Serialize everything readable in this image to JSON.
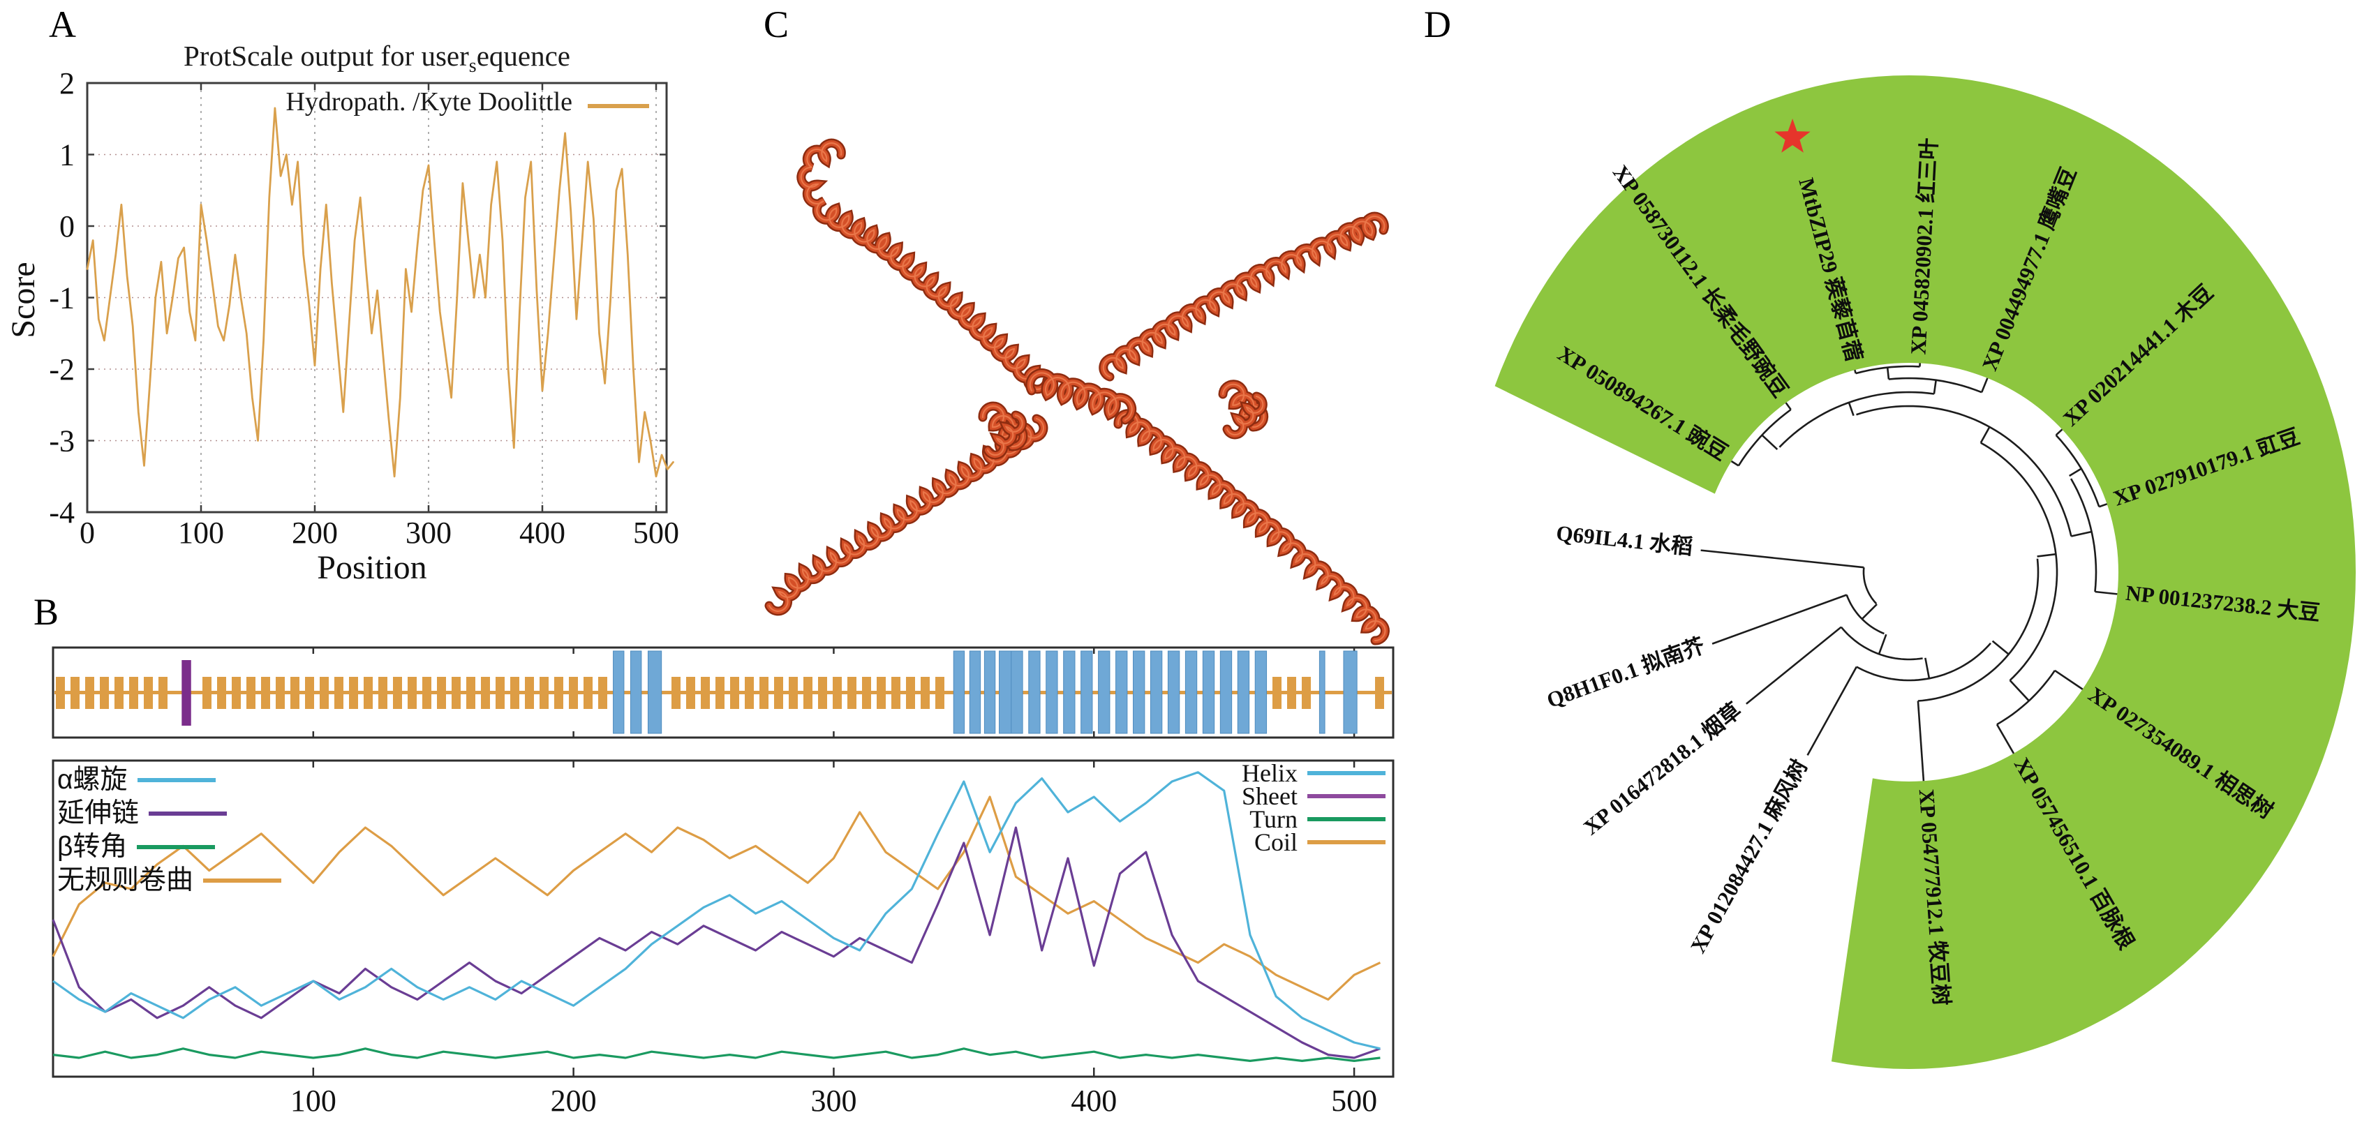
{
  "figure": {
    "background": "#ffffff"
  },
  "panels": {
    "a": {
      "letter": "A",
      "title_pre": "ProtScale output for user",
      "title_sub": "s",
      "title_post": "equence",
      "legend": "Hydropath. /Kyte Doolittle",
      "xlabel": "Position",
      "ylabel": "Score"
    },
    "b": {
      "letter": "B",
      "legend_left": [
        {
          "label": "α螺旋",
          "color": "#4fb3d9"
        },
        {
          "label": "延伸链",
          "color": "#6a3d94"
        },
        {
          "label": "β转角",
          "color": "#1a9a60"
        },
        {
          "label": "无规则卷曲",
          "color": "#dd9d45"
        }
      ],
      "legend_right": [
        {
          "label": "Helix",
          "color": "#4fb3d9"
        },
        {
          "label": "Sheet",
          "color": "#8e4a9e"
        },
        {
          "label": "Turn",
          "color": "#1a9a60"
        },
        {
          "label": "Coil",
          "color": "#dd9d45"
        }
      ]
    },
    "c": {
      "letter": "C",
      "ribbon_main": "#d44f27",
      "ribbon_dark": "#8e2c10",
      "ribbon_light": "#ef8052"
    },
    "d": {
      "letter": "D",
      "highlight_color": "#8dc63f",
      "star_color": "#e6352b",
      "star_taxon": "MtbZIP29 蒺藜苜蓿"
    }
  },
  "chart_data": [
    {
      "id": "protscale",
      "type": "line",
      "title": "ProtScale output for user_sequence",
      "xlabel": "Position",
      "ylabel": "Score",
      "xlim": [
        0,
        515
      ],
      "ylim": [
        -4,
        2
      ],
      "x_ticks": [
        0,
        100,
        200,
        300,
        400,
        500
      ],
      "y_ticks": [
        2,
        1,
        0,
        -1,
        -2,
        -3,
        -4
      ],
      "grid": true,
      "legend_position": "top-right",
      "series": [
        {
          "name": "Hydropath. /Kyte Doolittle",
          "color": "#d9a04c",
          "x_step": 5,
          "y": [
            -0.6,
            -0.2,
            -1.3,
            -1.6,
            -1.0,
            -0.4,
            0.3,
            -0.7,
            -1.4,
            -2.6,
            -3.35,
            -2.2,
            -1.0,
            -0.5,
            -1.5,
            -1.0,
            -0.45,
            -0.3,
            -1.2,
            -1.6,
            0.3,
            -0.2,
            -0.8,
            -1.4,
            -1.6,
            -1.1,
            -0.4,
            -1.0,
            -1.5,
            -2.4,
            -3.0,
            -1.6,
            0.4,
            1.65,
            0.7,
            1.0,
            0.3,
            0.9,
            -0.4,
            -1.1,
            -1.95,
            -0.6,
            0.3,
            -0.8,
            -1.7,
            -2.6,
            -1.4,
            -0.2,
            0.4,
            -0.6,
            -1.5,
            -0.9,
            -1.8,
            -2.7,
            -3.5,
            -2.4,
            -0.6,
            -1.2,
            -0.3,
            0.5,
            0.85,
            -0.2,
            -1.2,
            -1.8,
            -2.4,
            -1.0,
            0.6,
            -0.2,
            -1.0,
            -0.4,
            -1.0,
            0.3,
            0.9,
            -0.2,
            -2.0,
            -3.1,
            -1.2,
            0.4,
            0.9,
            -0.9,
            -2.3,
            -1.5,
            -0.5,
            0.5,
            1.3,
            0.2,
            -1.3,
            -0.2,
            0.9,
            0.1,
            -1.5,
            -2.2,
            -1.0,
            0.5,
            0.8,
            -0.4,
            -2.0,
            -3.3,
            -2.6,
            -3.0,
            -3.5,
            -3.2,
            -3.4,
            -3.3
          ]
        }
      ]
    },
    {
      "id": "domain-architecture",
      "type": "bar",
      "xlim": [
        0,
        515
      ],
      "sequence_track_color": "#dd9d45",
      "helix_segment_color": "#6fa8d6",
      "marker_color": "#7b2d8b",
      "marker": {
        "pos": 0.096,
        "width": 0.007
      },
      "helix_segments": [
        [
          0.418,
          0.008
        ],
        [
          0.431,
          0.008
        ],
        [
          0.444,
          0.01
        ],
        [
          0.672,
          0.008
        ],
        [
          0.684,
          0.008
        ],
        [
          0.695,
          0.008
        ],
        [
          0.706,
          0.01
        ],
        [
          0.715,
          0.0085
        ],
        [
          0.728,
          0.0085
        ],
        [
          0.741,
          0.0085
        ],
        [
          0.754,
          0.0085
        ],
        [
          0.767,
          0.0085
        ],
        [
          0.78,
          0.0085
        ],
        [
          0.793,
          0.0085
        ],
        [
          0.806,
          0.0085
        ],
        [
          0.819,
          0.0085
        ],
        [
          0.832,
          0.0085
        ],
        [
          0.845,
          0.0085
        ],
        [
          0.858,
          0.0085
        ],
        [
          0.871,
          0.0085
        ],
        [
          0.884,
          0.0085
        ],
        [
          0.897,
          0.0085
        ],
        [
          0.945,
          0.004
        ],
        [
          0.963,
          0.01
        ]
      ]
    },
    {
      "id": "secondary-structure",
      "type": "line",
      "xlim": [
        0,
        515
      ],
      "ylim": [
        0,
        1
      ],
      "x_ticks": [
        100,
        200,
        300,
        400,
        500
      ],
      "x_step": 10,
      "series": [
        {
          "name": "Helix",
          "color": "#4fb3d9",
          "y": [
            0.3,
            0.24,
            0.2,
            0.26,
            0.22,
            0.18,
            0.24,
            0.28,
            0.22,
            0.26,
            0.3,
            0.24,
            0.28,
            0.34,
            0.28,
            0.24,
            0.28,
            0.24,
            0.3,
            0.26,
            0.22,
            0.28,
            0.34,
            0.42,
            0.48,
            0.54,
            0.58,
            0.52,
            0.56,
            0.5,
            0.44,
            0.4,
            0.52,
            0.6,
            0.78,
            0.95,
            0.72,
            0.88,
            0.96,
            0.85,
            0.9,
            0.82,
            0.88,
            0.95,
            0.98,
            0.92,
            0.45,
            0.25,
            0.18,
            0.14,
            0.1,
            0.08
          ]
        },
        {
          "name": "Sheet",
          "color": "#6a3d94",
          "y": [
            0.5,
            0.28,
            0.2,
            0.24,
            0.18,
            0.22,
            0.28,
            0.22,
            0.18,
            0.24,
            0.3,
            0.26,
            0.34,
            0.28,
            0.24,
            0.3,
            0.36,
            0.3,
            0.26,
            0.32,
            0.38,
            0.44,
            0.4,
            0.46,
            0.42,
            0.48,
            0.44,
            0.4,
            0.46,
            0.42,
            0.38,
            0.44,
            0.4,
            0.36,
            0.55,
            0.75,
            0.45,
            0.8,
            0.4,
            0.7,
            0.35,
            0.65,
            0.72,
            0.45,
            0.3,
            0.25,
            0.2,
            0.15,
            0.1,
            0.06,
            0.05,
            0.08
          ]
        },
        {
          "name": "Turn",
          "color": "#1a9a60",
          "y": [
            0.06,
            0.05,
            0.07,
            0.05,
            0.06,
            0.08,
            0.06,
            0.05,
            0.07,
            0.06,
            0.05,
            0.06,
            0.08,
            0.06,
            0.05,
            0.07,
            0.06,
            0.05,
            0.06,
            0.07,
            0.05,
            0.06,
            0.05,
            0.07,
            0.06,
            0.05,
            0.06,
            0.05,
            0.07,
            0.06,
            0.05,
            0.06,
            0.07,
            0.05,
            0.06,
            0.08,
            0.06,
            0.07,
            0.05,
            0.06,
            0.07,
            0.05,
            0.06,
            0.05,
            0.06,
            0.05,
            0.04,
            0.05,
            0.04,
            0.05,
            0.04,
            0.05
          ]
        },
        {
          "name": "Coil",
          "color": "#dd9d45",
          "y": [
            0.38,
            0.55,
            0.62,
            0.6,
            0.68,
            0.74,
            0.66,
            0.72,
            0.78,
            0.7,
            0.62,
            0.72,
            0.8,
            0.74,
            0.66,
            0.58,
            0.64,
            0.7,
            0.64,
            0.58,
            0.66,
            0.72,
            0.78,
            0.72,
            0.8,
            0.76,
            0.7,
            0.74,
            0.68,
            0.62,
            0.7,
            0.85,
            0.72,
            0.66,
            0.6,
            0.72,
            0.9,
            0.64,
            0.58,
            0.52,
            0.56,
            0.5,
            0.44,
            0.4,
            0.36,
            0.42,
            0.38,
            0.32,
            0.28,
            0.24,
            0.32,
            0.36
          ]
        }
      ]
    },
    {
      "id": "phylogenetic-tree",
      "type": "tree",
      "leaves": [
        {
          "name": "Q69IL4.1 水稻",
          "angle": 174,
          "green": false,
          "star": false
        },
        {
          "name": "Q8H1F0.1 拟南芥",
          "angle": -160,
          "green": false,
          "star": false
        },
        {
          "name": "XP 016472818.1 烟草",
          "angle": -141,
          "green": false,
          "star": false
        },
        {
          "name": "XP 012084427.1 麻风树",
          "angle": -119,
          "green": false,
          "star": false
        },
        {
          "name": "XP 054777912.1 牧豆树",
          "angle": -86,
          "green": true,
          "star": false
        },
        {
          "name": "XP 027354089.1 相思树",
          "angle": -34,
          "green": true,
          "star": false
        },
        {
          "name": "XP 057456510.1 百脉根",
          "angle": -60,
          "green": true,
          "star": false
        },
        {
          "name": "NP 001237238.2 大豆",
          "angle": -6,
          "green": true,
          "star": false
        },
        {
          "name": "XP 027910179.1 豇豆",
          "angle": 19,
          "green": true,
          "star": false
        },
        {
          "name": "XP 020214441.1 木豆",
          "angle": 43,
          "green": true,
          "star": false
        },
        {
          "name": "XP 050894267.1 豌豆",
          "angle": 148,
          "green": true,
          "star": false
        },
        {
          "name": "XP 058730112.1 长柔毛野豌豆",
          "angle": 126,
          "green": true,
          "star": false
        },
        {
          "name": "MtbZIP29 蒺藜苜蓿",
          "angle": 105,
          "green": true,
          "star": true
        },
        {
          "name": "XP 045820902.1 红三叶",
          "angle": 87,
          "green": true,
          "star": false
        },
        {
          "name": "XP 004494977.1 鹰嘴豆",
          "angle": 68,
          "green": true,
          "star": false
        }
      ],
      "topology": {
        "r": 65,
        "children": [
          {
            "leaf": 0
          },
          {
            "r": 95,
            "children": [
              {
                "leaf": 1
              },
              {
                "r": 125,
                "children": [
                  {
                    "leaf": 2
                  },
                  {
                    "r": 155,
                    "children": [
                      {
                        "leaf": 3
                      },
                      {
                        "r": 185,
                        "children": [
                          {
                            "leaf": 4
                          },
                          {
                            "r": 212,
                            "children": [
                              {
                                "r": 252,
                                "children": [
                                  {
                                    "leaf": 5
                                  },
                                  {
                                    "leaf": 6
                                  }
                                ]
                              },
                              {
                                "r": 238,
                                "children": [
                                  {
                                    "r": 268,
                                    "children": [
                                      {
                                        "leaf": 7
                                      },
                                      {
                                        "r": 288,
                                        "children": [
                                          {
                                            "leaf": 8
                                          },
                                          {
                                            "leaf": 9
                                          }
                                        ]
                                      }
                                    ]
                                  },
                                  {
                                    "r": 258,
                                    "children": [
                                      {
                                        "r": 288,
                                        "children": [
                                          {
                                            "leaf": 10
                                          },
                                          {
                                            "leaf": 11
                                          }
                                        ]
                                      },
                                      {
                                        "r": 278,
                                        "children": [
                                          {
                                            "r": 295,
                                            "children": [
                                              {
                                                "leaf": 12
                                              },
                                              {
                                                "leaf": 13
                                              }
                                            ]
                                          },
                                          {
                                            "leaf": 14
                                          }
                                        ]
                                      }
                                    ]
                                  }
                                ]
                              }
                            ]
                          }
                        ]
                      }
                    ]
                  }
                ]
              }
            ]
          }
        ]
      },
      "fan": {
        "inner_r": 300,
        "outer_rx": 640,
        "outer_ry": 712,
        "angle_start": -100,
        "angle_end": 158
      }
    }
  ]
}
